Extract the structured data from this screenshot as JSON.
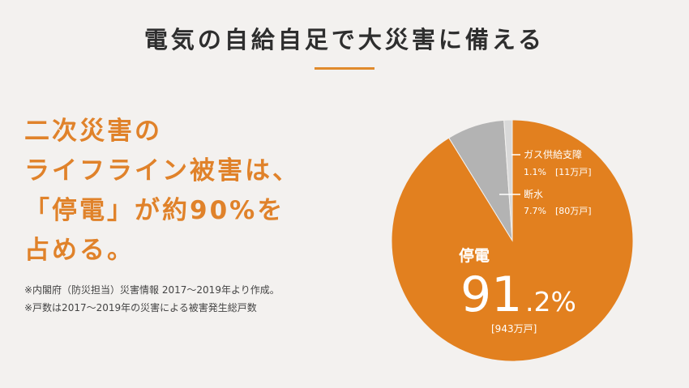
{
  "page": {
    "title": "電気の自給自足で大災害に備える",
    "headline": [
      "二次災害の",
      "ライフライン被害は、",
      "「停電」が約90%を",
      "占める。"
    ],
    "notes": [
      "※内閣府（防災担当）災害情報 2017〜2019年より作成。",
      "※戸数は2017〜2019年の災害による被害発生総戸数"
    ]
  },
  "colors": {
    "accent": "#e0822a",
    "teiden": "#e2801f",
    "dansui": "#b3b3b3",
    "gas": "#d9d9d9"
  },
  "chart_data": {
    "type": "pie",
    "slices": [
      {
        "name": "停電",
        "value": 91.2,
        "value_text": "91",
        "value_decimal": ".2%",
        "count": "[943万戸]",
        "color": "#e2801f"
      },
      {
        "name": "断水",
        "value": 7.7,
        "value_text": "7.7%",
        "count": "[80万戸]",
        "color": "#b3b3b3"
      },
      {
        "name": "ガス供給支障",
        "value": 1.1,
        "value_text": "1.1%",
        "count": "[11万戸]",
        "color": "#d9d9d9"
      }
    ]
  }
}
